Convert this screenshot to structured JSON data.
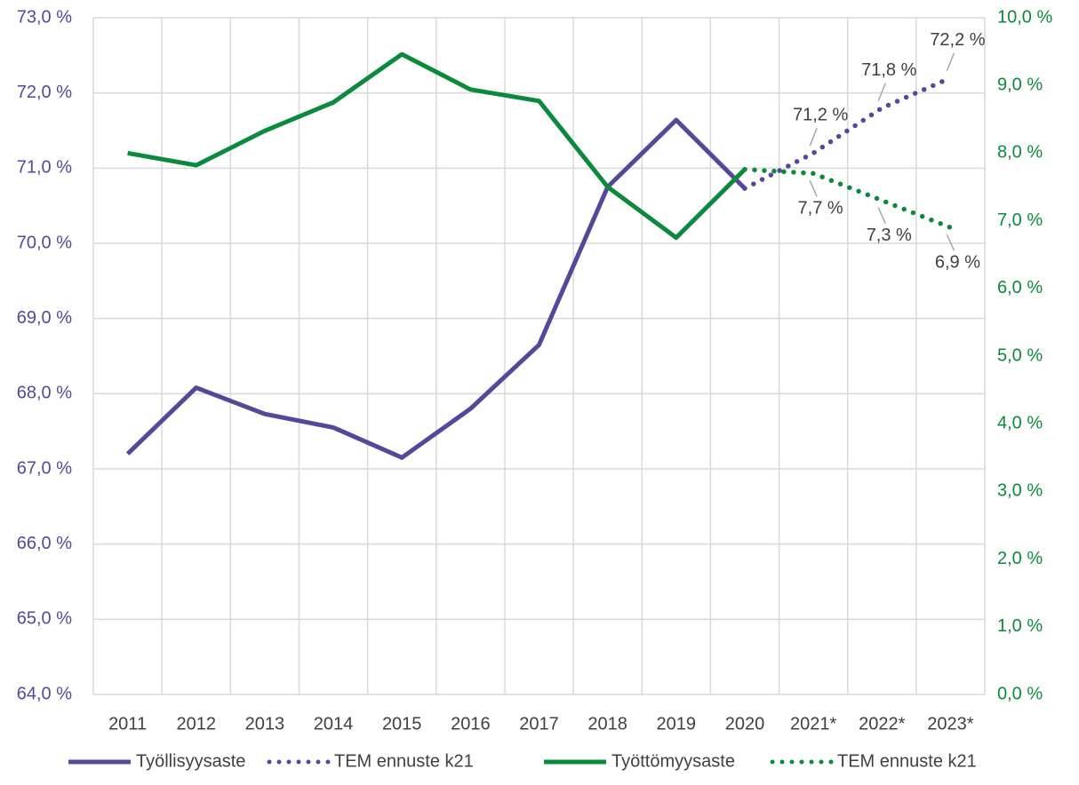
{
  "chart_data": {
    "type": "line",
    "categories": [
      "2011",
      "2012",
      "2013",
      "2014",
      "2015",
      "2016",
      "2017",
      "2018",
      "2019",
      "2020",
      "2021*",
      "2022*",
      "2023*"
    ],
    "series": [
      {
        "name": "Työllisyysaste",
        "color": "#56479b",
        "style": "solid",
        "axis": "y",
        "values": [
          67.2,
          68.08,
          67.73,
          67.55,
          67.15,
          67.8,
          68.65,
          70.75,
          71.64,
          70.73,
          null,
          null,
          null
        ]
      },
      {
        "name": "TEM ennuste k21",
        "color": "#56479b",
        "style": "dotted",
        "axis": "y",
        "values": [
          null,
          null,
          null,
          null,
          null,
          null,
          null,
          null,
          null,
          70.73,
          71.2,
          71.8,
          72.2
        ],
        "value_labels": [
          null,
          null,
          null,
          null,
          null,
          null,
          null,
          null,
          null,
          null,
          "71,2 %",
          "71,8 %",
          "72,2 %"
        ]
      },
      {
        "name": "Työttömyysaste",
        "color": "#0c8a3c",
        "style": "solid",
        "axis": "y2",
        "values": [
          8.0,
          7.82,
          8.33,
          8.75,
          9.46,
          8.94,
          8.77,
          7.5,
          6.75,
          7.76,
          null,
          null,
          null
        ]
      },
      {
        "name": "TEM ennuste k21",
        "color": "#0c8a3c",
        "style": "dotted",
        "axis": "y2",
        "values": [
          null,
          null,
          null,
          null,
          null,
          null,
          null,
          null,
          null,
          7.76,
          7.7,
          7.3,
          6.9
        ],
        "value_labels": [
          null,
          null,
          null,
          null,
          null,
          null,
          null,
          null,
          null,
          null,
          "7,7 %",
          "7,3 %",
          "6,9 %"
        ]
      }
    ],
    "ylim": [
      64,
      73
    ],
    "yticks": [
      {
        "value": 64,
        "label": "64,0 %"
      },
      {
        "value": 65,
        "label": "65,0 %"
      },
      {
        "value": 66,
        "label": "66,0 %"
      },
      {
        "value": 67,
        "label": "67,0 %"
      },
      {
        "value": 68,
        "label": "68,0 %"
      },
      {
        "value": 69,
        "label": "69,0 %"
      },
      {
        "value": 70,
        "label": "70,0 %"
      },
      {
        "value": 71,
        "label": "71,0 %"
      },
      {
        "value": 72,
        "label": "72,0 %"
      },
      {
        "value": 73,
        "label": "73,0 %"
      }
    ],
    "y2lim": [
      0,
      10
    ],
    "y2ticks": [
      {
        "value": 0,
        "label": "0,0 %"
      },
      {
        "value": 1,
        "label": "1,0 %"
      },
      {
        "value": 2,
        "label": "2,0 %"
      },
      {
        "value": 3,
        "label": "3,0 %"
      },
      {
        "value": 4,
        "label": "4,0 %"
      },
      {
        "value": 5,
        "label": "5,0 %"
      },
      {
        "value": 6,
        "label": "6,0 %"
      },
      {
        "value": 7,
        "label": "7,0 %"
      },
      {
        "value": 8,
        "label": "8,0 %"
      },
      {
        "value": 9,
        "label": "9,0 %"
      },
      {
        "value": 10,
        "label": "10,0 %"
      }
    ],
    "grid": true,
    "legend": "bottom"
  }
}
